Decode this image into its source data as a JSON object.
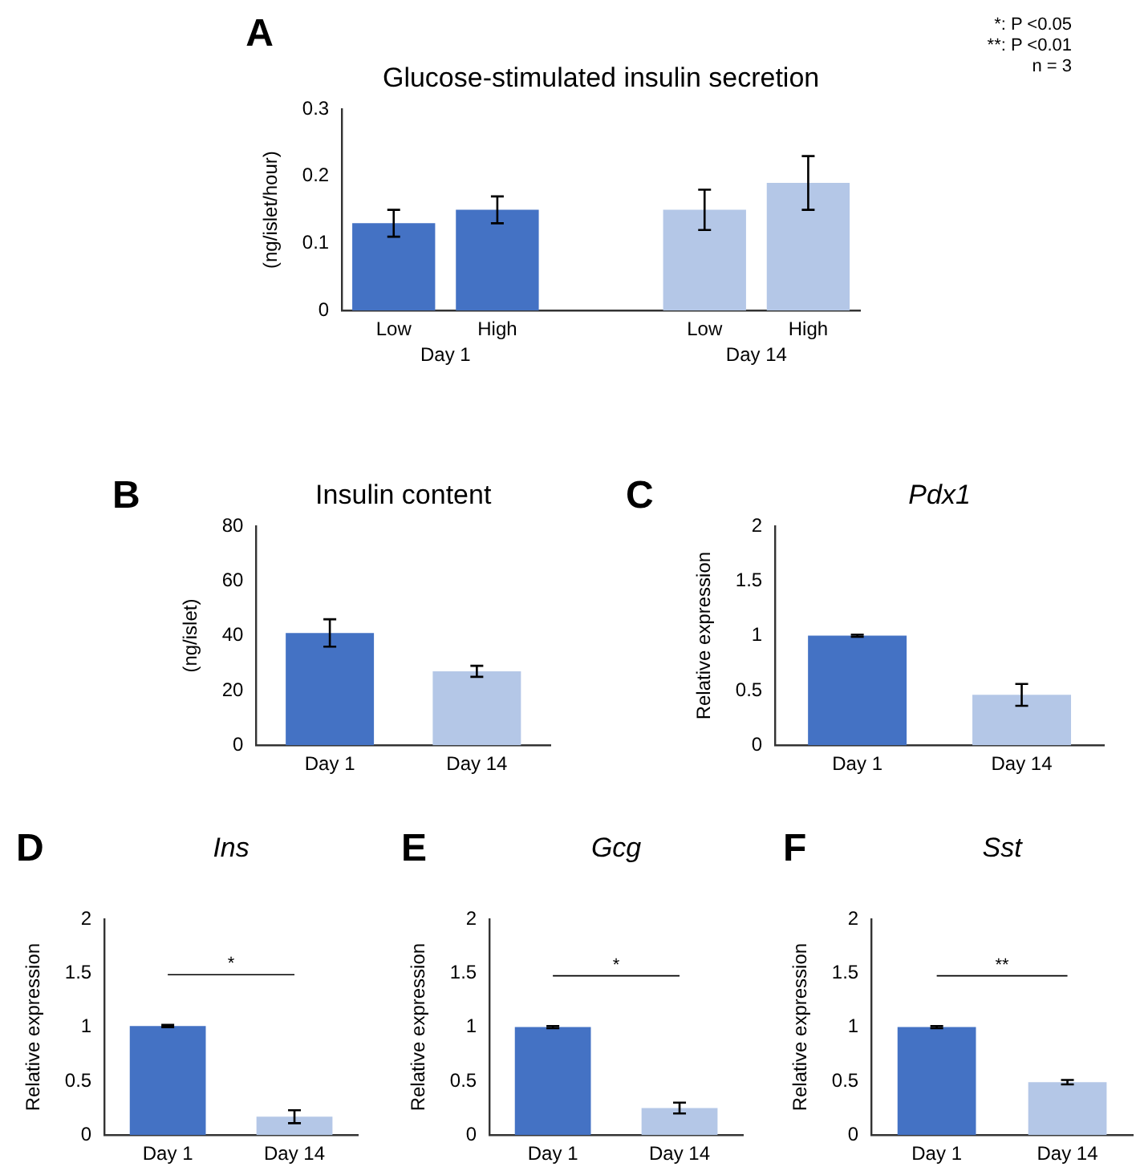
{
  "chart_data": [
    {
      "type": "bar",
      "title": "Glucose-stimulated insulin secretion",
      "ylabel": "(ng/islet/hour)",
      "categories": [
        "Low",
        "High",
        null,
        "Low",
        "High"
      ],
      "values": [
        0.13,
        0.15,
        null,
        0.15,
        0.19
      ],
      "errors": [
        0.02,
        0.02,
        null,
        0.03,
        0.04
      ],
      "colors": [
        "#4472c4",
        "#4472c4",
        "#4472c4",
        "#b4c7e7",
        "#b4c7e7"
      ],
      "ylim": [
        0,
        0.3
      ],
      "yticks": [
        0,
        0.1,
        0.2,
        0.3
      ],
      "grid": false,
      "legend": false,
      "annotations": [
        "A",
        "Day 1",
        "Day 14",
        "*: P <0.05",
        "**: P <0.01",
        "n = 3"
      ]
    },
    {
      "type": "bar",
      "title": "Insulin content",
      "ylabel": "(ng/islet)",
      "categories": [
        "Day 1",
        "Day 14"
      ],
      "values": [
        41,
        27
      ],
      "errors": [
        5,
        2
      ],
      "colors": [
        "#4472c4",
        "#b4c7e7"
      ],
      "ylim": [
        0,
        80
      ],
      "yticks": [
        0,
        20,
        40,
        60,
        80
      ],
      "grid": false,
      "legend": false,
      "annotations": [
        "B"
      ]
    },
    {
      "type": "bar",
      "title": "Pdx1",
      "ylabel": "Relative expression",
      "categories": [
        "Day 1",
        "Day 14"
      ],
      "values": [
        1.0,
        0.46
      ],
      "errors": [
        0.01,
        0.1
      ],
      "colors": [
        "#4472c4",
        "#b4c7e7"
      ],
      "ylim": [
        0,
        2
      ],
      "yticks": [
        0,
        0.5,
        1,
        1.5,
        2
      ],
      "grid": false,
      "legend": false,
      "annotations": [
        "C"
      ]
    },
    {
      "type": "bar",
      "title": "Ins",
      "ylabel": "Relative expression",
      "categories": [
        "Day 1",
        "Day 14"
      ],
      "values": [
        1.01,
        0.17
      ],
      "errors": [
        0.01,
        0.06
      ],
      "colors": [
        "#4472c4",
        "#b4c7e7"
      ],
      "ylim": [
        0,
        2
      ],
      "yticks": [
        0,
        0.5,
        1,
        1.5,
        2
      ],
      "grid": false,
      "legend": false,
      "annotations": [
        "D",
        "*"
      ]
    },
    {
      "type": "bar",
      "title": "Gcg",
      "ylabel": "Relative expression",
      "categories": [
        "Day 1",
        "Day 14"
      ],
      "values": [
        1.0,
        0.25
      ],
      "errors": [
        0.01,
        0.05
      ],
      "colors": [
        "#4472c4",
        "#b4c7e7"
      ],
      "ylim": [
        0,
        2
      ],
      "yticks": [
        0,
        0.5,
        1,
        1.5,
        2
      ],
      "grid": false,
      "legend": false,
      "annotations": [
        "E",
        "*"
      ]
    },
    {
      "type": "bar",
      "title": "Sst",
      "ylabel": "Relative expression",
      "categories": [
        "Day 1",
        "Day 14"
      ],
      "values": [
        1.0,
        0.49
      ],
      "errors": [
        0.01,
        0.02
      ],
      "colors": [
        "#4472c4",
        "#b4c7e7"
      ],
      "ylim": [
        0,
        2
      ],
      "yticks": [
        0,
        0.5,
        1,
        1.5,
        2
      ],
      "grid": false,
      "legend": false,
      "annotations": [
        "F",
        "**"
      ]
    }
  ]
}
